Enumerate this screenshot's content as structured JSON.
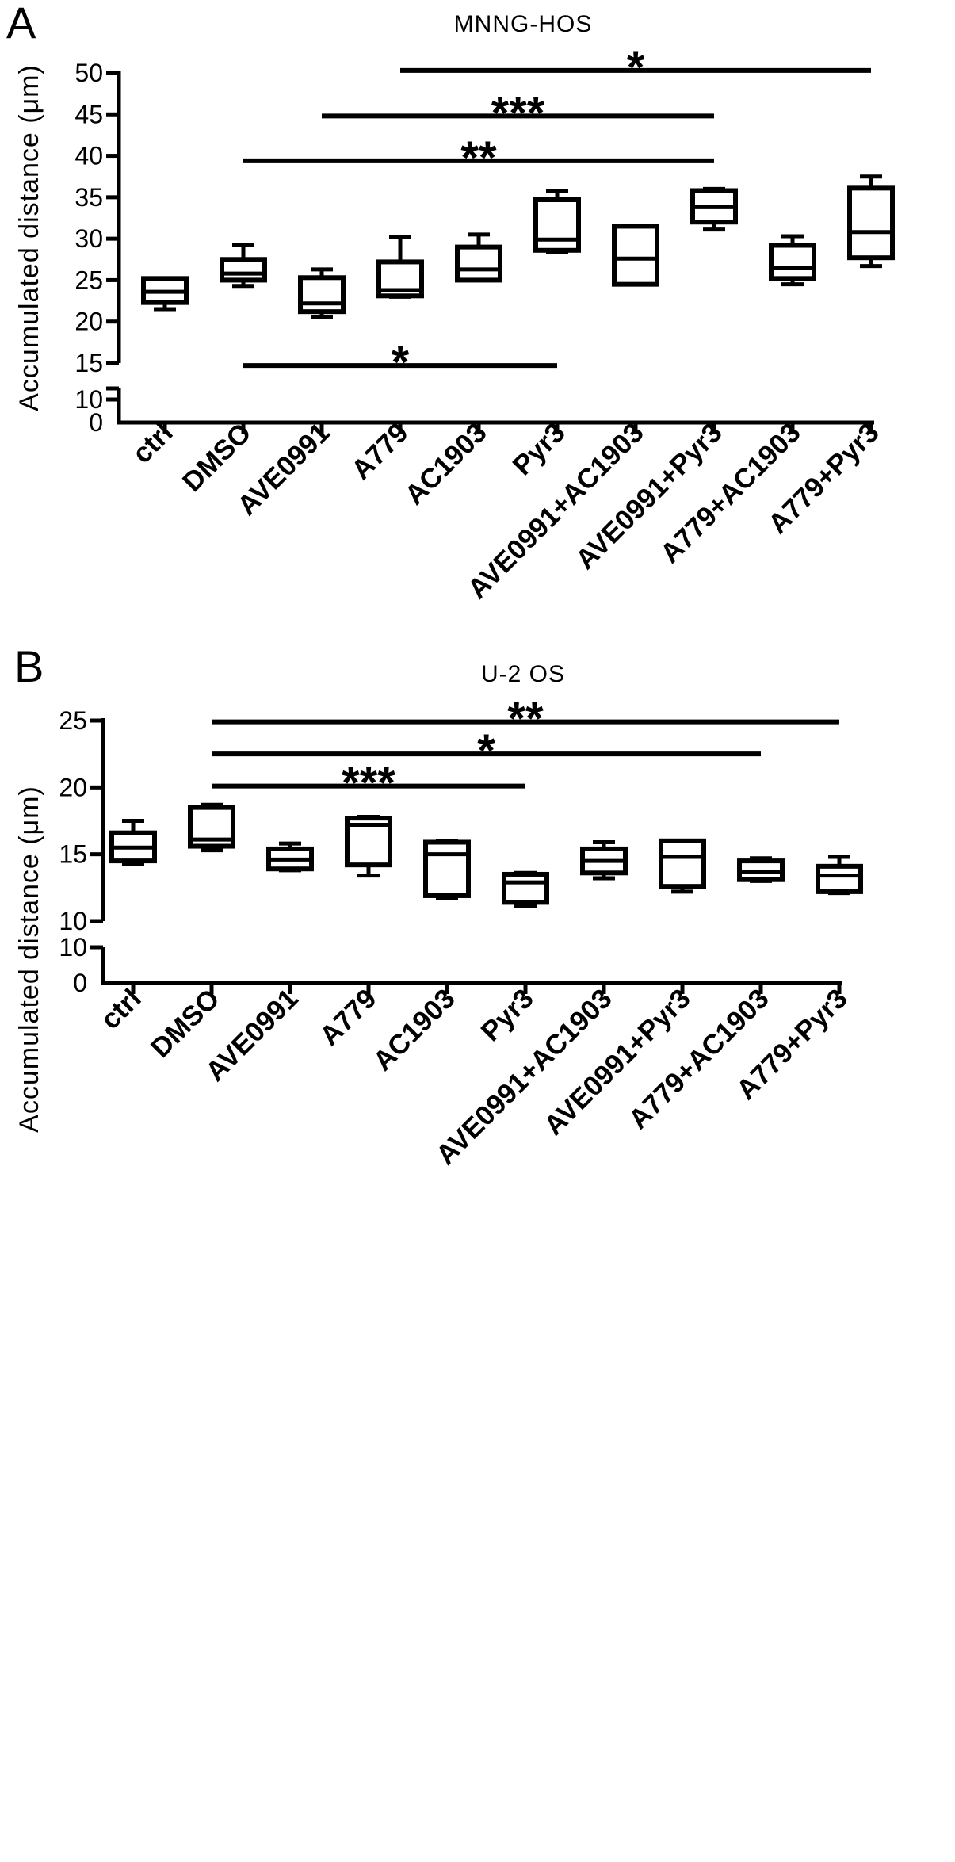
{
  "chart_data": [
    {
      "type": "box",
      "panel": "A",
      "title": "MNNG-HOS",
      "ylabel": "Accumulated distance (μm)",
      "ylim": [
        0,
        50
      ],
      "y_axis_break": [
        12,
        15
      ],
      "y_ticks_lower": [
        0,
        10
      ],
      "y_ticks_upper": [
        15,
        20,
        25,
        30,
        35,
        40,
        45,
        50
      ],
      "categories": [
        "ctrl",
        "DMSO",
        "AVE0991",
        "A779",
        "AC1903",
        "Pyr3",
        "AVE0991+AC1903",
        "AVE0991+Pyr3",
        "A779+AC1903",
        "A779+Pyr3"
      ],
      "boxes": [
        {
          "min": 21.5,
          "q1": 22.3,
          "median": 23.6,
          "q3": 25.2,
          "max": 25.2
        },
        {
          "min": 24.3,
          "q1": 25.0,
          "median": 25.8,
          "q3": 27.5,
          "max": 29.2
        },
        {
          "min": 20.6,
          "q1": 21.2,
          "median": 22.2,
          "q3": 25.3,
          "max": 26.3
        },
        {
          "min": 23.0,
          "q1": 23.1,
          "median": 23.8,
          "q3": 27.2,
          "max": 30.2
        },
        {
          "min": 25.0,
          "q1": 25.0,
          "median": 26.3,
          "q3": 29.0,
          "max": 30.5
        },
        {
          "min": 28.4,
          "q1": 28.6,
          "median": 29.9,
          "q3": 34.7,
          "max": 35.7
        },
        {
          "min": 24.5,
          "q1": 24.5,
          "median": 27.6,
          "q3": 31.5,
          "max": 31.5
        },
        {
          "min": 31.1,
          "q1": 32.0,
          "median": 33.8,
          "q3": 35.8,
          "max": 36.0
        },
        {
          "min": 24.5,
          "q1": 25.2,
          "median": 26.5,
          "q3": 29.2,
          "max": 30.3
        },
        {
          "min": 26.7,
          "q1": 27.7,
          "median": 30.8,
          "q3": 36.1,
          "max": 37.5
        }
      ],
      "significance": [
        {
          "from": "A779",
          "to": "A779+Pyr3",
          "y": 50.3,
          "label": "*"
        },
        {
          "from": "AVE0991",
          "to": "AVE0991+Pyr3",
          "y": 44.8,
          "label": "***"
        },
        {
          "from": "DMSO",
          "to": "AVE0991+Pyr3",
          "y": 39.4,
          "label": "**"
        },
        {
          "from": "DMSO",
          "to": "Pyr3",
          "y": 14.7,
          "label": "*"
        }
      ]
    },
    {
      "type": "box",
      "panel": "B",
      "title": "U-2 OS",
      "ylabel": "Accumulated distance (μm)",
      "ylim": [
        0,
        25
      ],
      "y_axis_break": [
        11,
        10
      ],
      "y_ticks_lower": [
        0,
        10
      ],
      "y_ticks_upper": [
        10,
        15,
        20,
        25
      ],
      "categories": [
        "ctrl",
        "DMSO",
        "AVE0991",
        "A779",
        "AC1903",
        "Pyr3",
        "AVE0991+AC1903",
        "AVE0991+Pyr3",
        "A779+AC1903",
        "A779+Pyr3"
      ],
      "boxes": [
        {
          "min": 14.3,
          "q1": 14.5,
          "median": 15.5,
          "q3": 16.6,
          "max": 17.5
        },
        {
          "min": 15.3,
          "q1": 15.6,
          "median": 16.1,
          "q3": 18.5,
          "max": 18.7
        },
        {
          "min": 13.8,
          "q1": 13.9,
          "median": 14.6,
          "q3": 15.4,
          "max": 15.8
        },
        {
          "min": 13.4,
          "q1": 14.2,
          "median": 17.2,
          "q3": 17.7,
          "max": 17.8
        },
        {
          "min": 11.7,
          "q1": 11.9,
          "median": 15.0,
          "q3": 15.9,
          "max": 16.0
        },
        {
          "min": 11.1,
          "q1": 11.4,
          "median": 12.9,
          "q3": 13.5,
          "max": 13.6
        },
        {
          "min": 13.2,
          "q1": 13.6,
          "median": 14.5,
          "q3": 15.4,
          "max": 15.9
        },
        {
          "min": 12.2,
          "q1": 12.6,
          "median": 14.8,
          "q3": 16.0,
          "max": 16.0
        },
        {
          "min": 13.0,
          "q1": 13.1,
          "median": 13.7,
          "q3": 14.5,
          "max": 14.7
        },
        {
          "min": 12.1,
          "q1": 12.2,
          "median": 13.4,
          "q3": 14.1,
          "max": 14.8
        }
      ],
      "significance": [
        {
          "from": "DMSO",
          "to": "A779+Pyr3",
          "y": 24.9,
          "label": "**"
        },
        {
          "from": "DMSO",
          "to": "A779+AC1903",
          "y": 22.5,
          "label": "*"
        },
        {
          "from": "DMSO",
          "to": "Pyr3",
          "y": 20.1,
          "label": "***"
        }
      ]
    }
  ]
}
